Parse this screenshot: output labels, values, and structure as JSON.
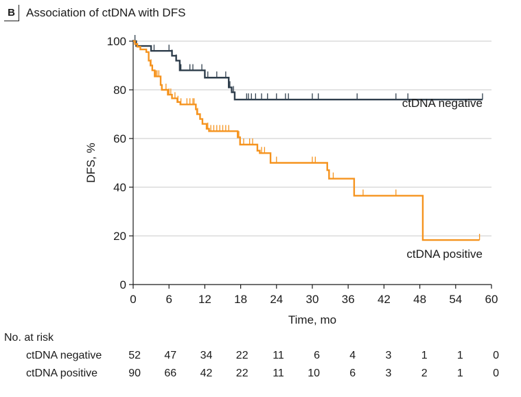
{
  "header": {
    "panel_letter": "B",
    "title": "Association of ctDNA with DFS"
  },
  "chart_data": {
    "type": "line",
    "subtype": "kaplan-meier",
    "xlabel": "Time, mo",
    "ylabel": "DFS, %",
    "xlim": [
      0,
      60
    ],
    "ylim": [
      0,
      100
    ],
    "x_ticks": [
      0,
      6,
      12,
      18,
      24,
      30,
      36,
      42,
      48,
      54,
      60
    ],
    "y_ticks": [
      0,
      20,
      40,
      60,
      80,
      100
    ],
    "grid": "horizontal",
    "series": [
      {
        "name": "ctDNA negative",
        "color": "#2f3e4c",
        "steps": [
          [
            0,
            100
          ],
          [
            0.5,
            98
          ],
          [
            3,
            96
          ],
          [
            6.5,
            94
          ],
          [
            7.2,
            92
          ],
          [
            7.8,
            88
          ],
          [
            12,
            85
          ],
          [
            16,
            81
          ],
          [
            16.5,
            79
          ],
          [
            17,
            76
          ],
          [
            58.5,
            76
          ]
        ],
        "censor_x": [
          0.3,
          3.5,
          6,
          6.5,
          7.2,
          8,
          9.5,
          10,
          11.5,
          12.5,
          14,
          15.5,
          16.2,
          16.8,
          19,
          19.3,
          19.8,
          20.5,
          21.5,
          22.5,
          24,
          25.5,
          26,
          30,
          31,
          37.5,
          44,
          46,
          58.5
        ]
      },
      {
        "name": "ctDNA positive",
        "color": "#f5931e",
        "steps": [
          [
            0,
            100
          ],
          [
            0.3,
            98.8
          ],
          [
            0.7,
            97.7
          ],
          [
            1.2,
            96.6
          ],
          [
            2.2,
            95.5
          ],
          [
            2.6,
            92
          ],
          [
            2.9,
            90
          ],
          [
            3.2,
            88
          ],
          [
            3.6,
            85.5
          ],
          [
            4.6,
            82
          ],
          [
            4.8,
            80
          ],
          [
            5.8,
            78
          ],
          [
            6.5,
            76.5
          ],
          [
            7.4,
            75
          ],
          [
            7.9,
            74
          ],
          [
            10.5,
            72
          ],
          [
            10.7,
            70
          ],
          [
            11.2,
            68
          ],
          [
            11.6,
            66
          ],
          [
            12.3,
            64
          ],
          [
            12.7,
            63
          ],
          [
            17.5,
            60.5
          ],
          [
            17.9,
            57.5
          ],
          [
            20.8,
            55
          ],
          [
            21.2,
            54
          ],
          [
            23,
            50
          ],
          [
            32.5,
            47
          ],
          [
            32.8,
            43.5
          ],
          [
            37,
            36.5
          ],
          [
            48.5,
            18.3
          ],
          [
            58,
            18.3
          ]
        ],
        "censor_x": [
          3,
          3.8,
          4,
          4.3,
          5.5,
          6,
          6.3,
          7,
          7.5,
          8,
          9,
          9.5,
          10,
          10.2,
          10.8,
          12.5,
          13,
          13.5,
          14,
          14.5,
          15,
          15.5,
          16,
          17.7,
          18.5,
          19.5,
          20,
          21.5,
          22,
          24,
          30,
          30.5,
          33.5,
          38.5,
          44,
          58
        ]
      }
    ],
    "annotations": [
      {
        "text": "ctDNA negative",
        "x": 58.5,
        "y": 73
      },
      {
        "text": "ctDNA positive",
        "x": 58.5,
        "y": 11
      }
    ],
    "risk_table": {
      "heading": "No. at risk",
      "times": [
        0,
        6,
        12,
        18,
        24,
        30,
        36,
        42,
        48,
        54,
        60
      ],
      "rows": [
        {
          "label": "ctDNA negative",
          "counts": [
            "52",
            "47",
            "34",
            "22",
            "11",
            "6",
            "4",
            "3",
            "1",
            "1",
            "0"
          ]
        },
        {
          "label": "ctDNA positive",
          "counts": [
            "90",
            "66",
            "42",
            "22",
            "11",
            "10",
            "6",
            "3",
            "2",
            "1",
            "0"
          ]
        }
      ]
    }
  }
}
